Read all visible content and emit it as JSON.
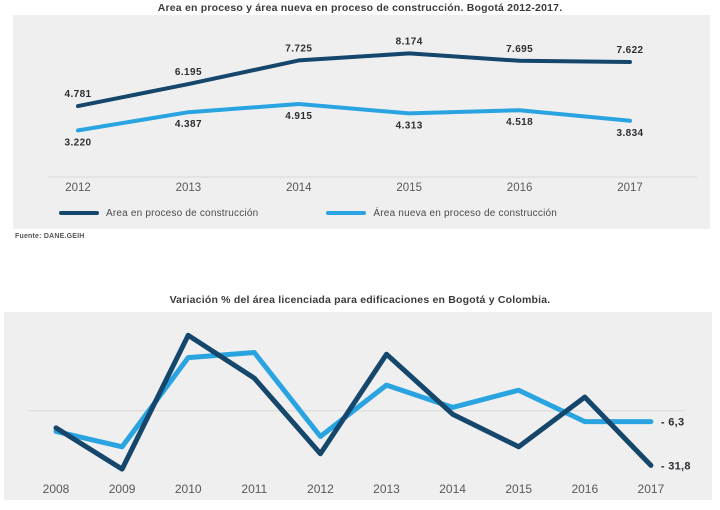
{
  "colors": {
    "series_dark": "#15466B",
    "series_light": "#29A4E1",
    "panel_bg": "#EFEFEF",
    "axis_line": "#D8D8D8",
    "data_label_text": "#2D2D33",
    "tick_text": "#58595B",
    "title_text": "#3B3B3E"
  },
  "chart_data": [
    {
      "type": "line",
      "title": "Area en proceso y área nueva en proceso de construcción. Bogotá 2012-2017.",
      "categories": [
        "2012",
        "2013",
        "2014",
        "2015",
        "2016",
        "2017"
      ],
      "series": [
        {
          "name": "Area en proceso de construcción",
          "color": "dark",
          "values": [
            4781,
            6195,
            7725,
            8174,
            7695,
            7622
          ],
          "point_labels": [
            "4.781",
            "6.195",
            "7.725",
            "8.174",
            "7.695",
            "7.622"
          ],
          "label_position": "above"
        },
        {
          "name": "Área nueva en proceso de construcción",
          "color": "light",
          "values": [
            3220,
            4387,
            4915,
            4313,
            4518,
            3834
          ],
          "point_labels": [
            "3.220",
            "4.387",
            "4.915",
            "4.313",
            "4.518",
            "3.834"
          ],
          "label_position": "below"
        }
      ],
      "ylim": [
        2600,
        9100
      ],
      "grid": false,
      "legend_position": "bottom",
      "source": "Fuente: DANE.GEIH"
    },
    {
      "type": "line",
      "title": "Variación % del área licenciada para edificaciones en Bogotá y Colombia.",
      "categories": [
        "2008",
        "2009",
        "2010",
        "2011",
        "2012",
        "2013",
        "2014",
        "2015",
        "2016",
        "2017"
      ],
      "series": [
        {
          "color": "dark",
          "values": [
            -10,
            -34,
            44,
            19,
            -25,
            33,
            -2,
            -21,
            8,
            -31.8
          ],
          "end_label": "- 31,8"
        },
        {
          "color": "light",
          "values": [
            -12,
            -21,
            31,
            34,
            -15,
            15,
            2,
            12,
            -6.3,
            -6.3
          ],
          "end_label": "- 6,3"
        }
      ],
      "ylim": [
        -45,
        50
      ],
      "zero_line": true,
      "grid": false,
      "legend_position": "none"
    }
  ]
}
